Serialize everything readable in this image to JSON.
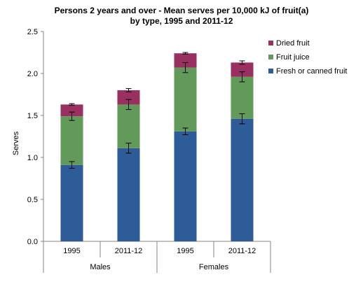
{
  "chart_data": {
    "type": "bar",
    "stacked": true,
    "title_lines": [
      "Persons 2 years and over - Mean serves per 10,000 kJ of fruit(a)",
      "by type, 1995 and 2011-12"
    ],
    "ylabel": "Serves",
    "xlabel": "",
    "ylim": [
      0,
      2.5
    ],
    "yticks": [
      "0.0",
      "0.5",
      "1.0",
      "1.5",
      "2.0",
      "2.5"
    ],
    "categories": [
      "1995",
      "2011-12",
      "1995",
      "2011-12"
    ],
    "groups": [
      {
        "label": "Males",
        "span": [
          0,
          1
        ]
      },
      {
        "label": "Females",
        "span": [
          2,
          3
        ]
      }
    ],
    "series": [
      {
        "name": "Fresh or canned fruit",
        "color": "#2e5c99",
        "values": [
          0.91,
          1.11,
          1.31,
          1.46
        ],
        "errors": [
          0.04,
          0.06,
          0.04,
          0.06
        ]
      },
      {
        "name": "Fruit juice",
        "color": "#629a59",
        "values": [
          0.58,
          0.52,
          0.76,
          0.5
        ],
        "errors": [
          0.05,
          0.06,
          0.06,
          0.06
        ]
      },
      {
        "name": "Dried fruit",
        "color": "#9a3061",
        "values": [
          0.14,
          0.17,
          0.17,
          0.17
        ],
        "errors": [
          0.01,
          0.02,
          0.01,
          0.02
        ]
      }
    ],
    "legend_position": "right",
    "grid": false
  }
}
